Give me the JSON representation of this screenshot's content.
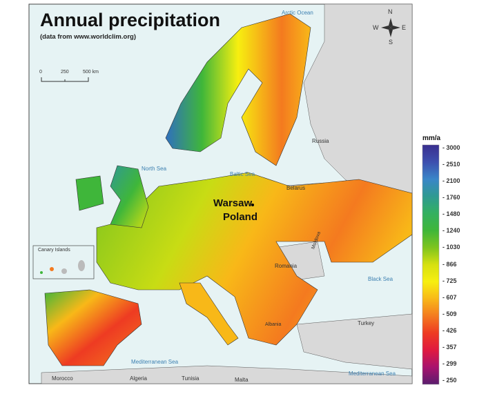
{
  "title": "Annual precipitation",
  "subtitle": "(data from www.worldclim.org)",
  "scale_bar": {
    "labels": [
      "0",
      "250",
      "500 km"
    ]
  },
  "compass": {
    "n": "N",
    "s": "S",
    "e": "E",
    "w": "W"
  },
  "seas": {
    "arctic": "Arctic Ocean",
    "north": "North Sea",
    "baltic": "Baltic Sea",
    "black": "Black Sea",
    "med_west": "Mediterranean Sea",
    "med_east": "Mediterranean Sea"
  },
  "countries": {
    "russia": "Russia",
    "belarus": "Belarus",
    "moldova": "Moldova",
    "romania": "Romania",
    "turkey": "Turkey",
    "albania": "Albania",
    "morocco": "Morocco",
    "algeria": "Algeria",
    "tunisia": "Tunisia",
    "malta": "Malta"
  },
  "inset": {
    "label": "Canary Islands"
  },
  "annotation": {
    "city": "Warsaw",
    "country": "Poland"
  },
  "legend": {
    "unit": "mm/a",
    "ticks": [
      "3000",
      "2510",
      "2100",
      "1760",
      "1480",
      "1240",
      "1030",
      "866",
      "725",
      "607",
      "509",
      "426",
      "357",
      "299",
      "250"
    ],
    "colors": [
      "#3a2f8f",
      "#3d4fae",
      "#3a86c8",
      "#2f9a92",
      "#33b060",
      "#3fb63a",
      "#7ec41e",
      "#d6e010",
      "#f7ef10",
      "#f8b818",
      "#f47a1f",
      "#ee3b22",
      "#e01a40",
      "#a8136e",
      "#5a1d6e"
    ]
  },
  "colors": {
    "sea": "#e6f3f4",
    "outside_land": "#d9d9d9"
  }
}
